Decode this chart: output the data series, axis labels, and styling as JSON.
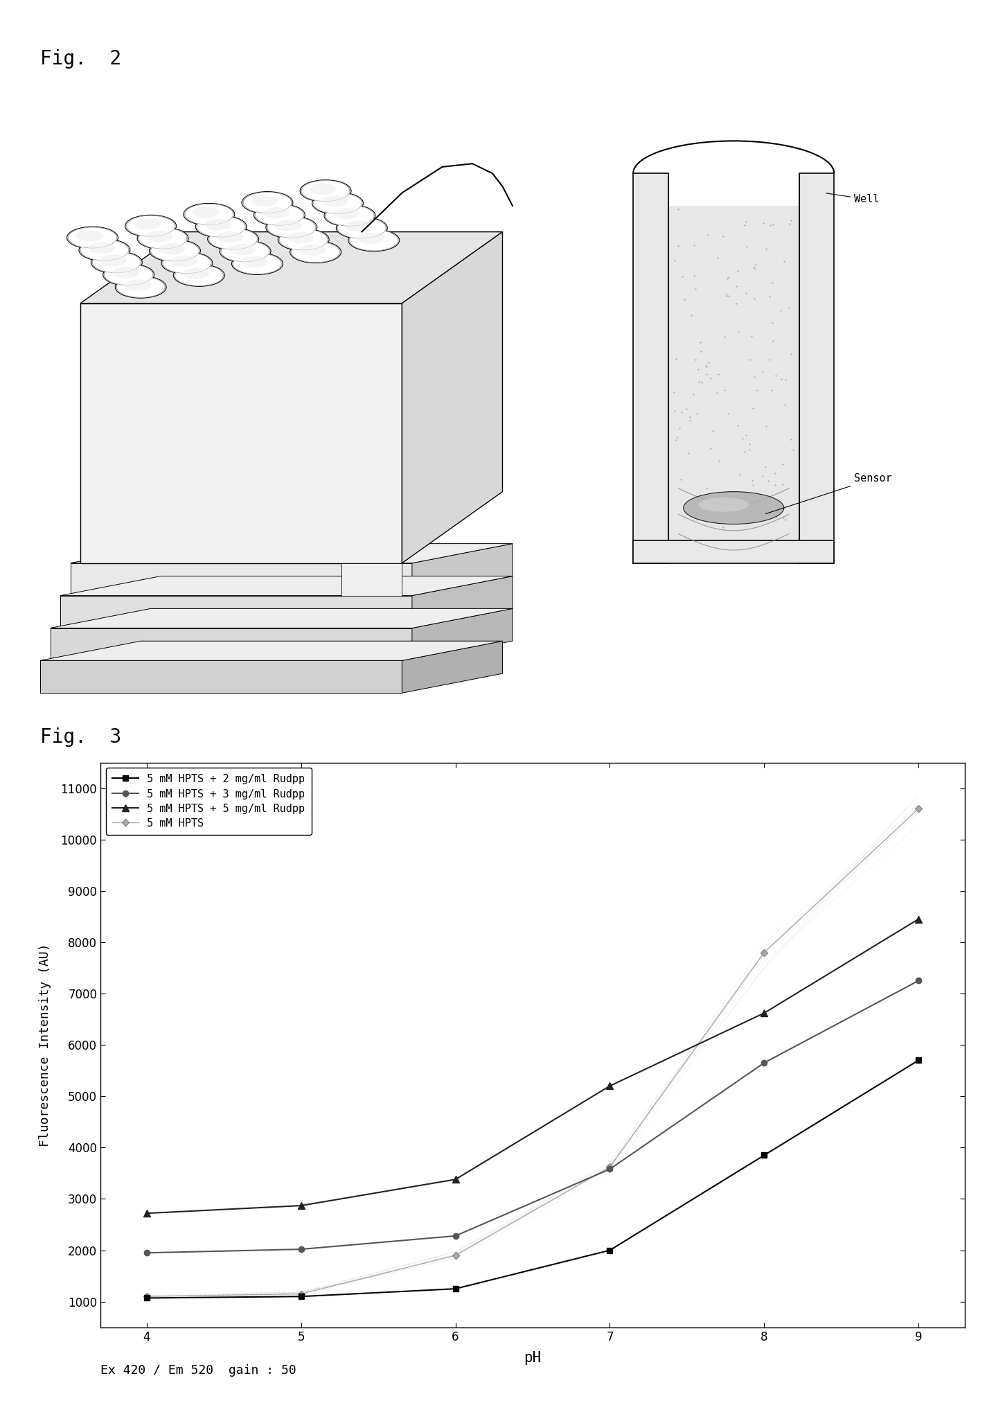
{
  "fig2_label": "Fig.  2",
  "fig3_label": "Fig.  3",
  "xlabel": "pH",
  "ylabel": "Fluorescence Intensity (AU)",
  "caption": "Ex 420 / Em 520  gain : 50",
  "x_values": [
    4,
    5,
    6,
    7,
    8,
    9
  ],
  "series": [
    {
      "label": "5 mM HPTS + 2 mg/ml Rudpp",
      "y": [
        1070,
        1100,
        1250,
        2000,
        3850,
        5700
      ],
      "color": "#000000",
      "marker": "s",
      "markersize": 6,
      "linewidth": 1.5,
      "linestyle": "-"
    },
    {
      "label": "5 mM HPTS + 3 mg/ml Rudpp",
      "y": [
        1950,
        2020,
        2280,
        3580,
        5650,
        7250
      ],
      "color": "#555555",
      "marker": "o",
      "markersize": 6,
      "linewidth": 1.5,
      "linestyle": "-"
    },
    {
      "label": "5 mM HPTS + 5 mg/ml Rudpp",
      "y": [
        2720,
        2870,
        3380,
        5200,
        6620,
        8450
      ],
      "color": "#222222",
      "marker": "^",
      "markersize": 7,
      "linewidth": 1.5,
      "linestyle": "-"
    },
    {
      "label": "5 mM HPTS",
      "y": [
        1100,
        1150,
        1900,
        3620,
        7800,
        10600
      ],
      "color": "#aaaaaa",
      "marker": "D",
      "markersize": 5,
      "linewidth": 1.0,
      "linestyle": "-"
    }
  ],
  "ylim": [
    500,
    11500
  ],
  "yticks": [
    1000,
    2000,
    3000,
    4000,
    5000,
    6000,
    7000,
    8000,
    9000,
    10000,
    11000
  ],
  "xlim": [
    3.7,
    9.3
  ],
  "xticks": [
    4,
    5,
    6,
    7,
    8,
    9
  ],
  "background_color": "#ffffff",
  "fig_bg": "#ffffff",
  "plate_wells_rows": 5,
  "plate_wells_cols": 5
}
